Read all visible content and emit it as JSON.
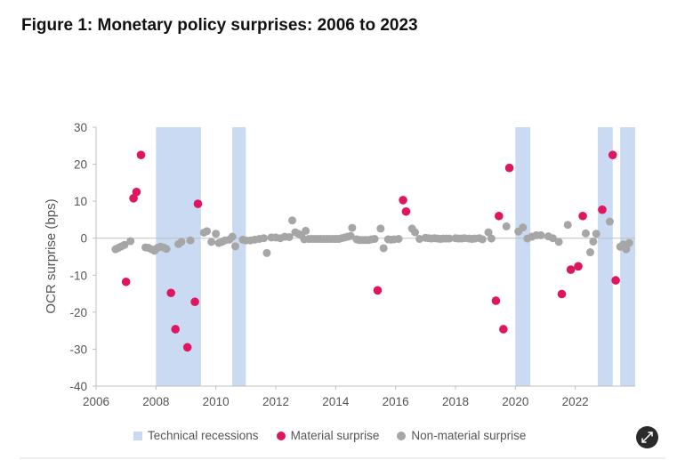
{
  "figure_title": "Figure 1: Monetary policy surprises: 2006 to 2023",
  "expand_button": {
    "icon": "expand-icon",
    "color": "#2a2a2a"
  },
  "colors": {
    "recession": "#c9daf2",
    "material": "#e0155f",
    "nonmaterial": "#a6a6a6",
    "zero_line": "#bfbfbf",
    "axis": "#bfbfbf"
  },
  "chart_data": {
    "type": "scatter",
    "title": "Figure 1: Monetary policy surprises: 2006 to 2023",
    "xlabel": "",
    "ylabel": "OCR surprise (bps)",
    "xlim": [
      2006,
      2024
    ],
    "ylim": [
      -40,
      30
    ],
    "xticks": [
      "2006",
      "2008",
      "2010",
      "2012",
      "2014",
      "2016",
      "2018",
      "2020",
      "2022"
    ],
    "yticks": [
      "30",
      "20",
      "10",
      "0",
      "-10",
      "-20",
      "-30",
      "-40"
    ],
    "grid": false,
    "legend_position": "bottom",
    "legend": [
      "Technical recessions",
      "Material surprise",
      "Non-material surprise"
    ],
    "recessions": [
      [
        2008.0,
        2009.5
      ],
      [
        2010.55,
        2011.0
      ],
      [
        2020.0,
        2020.5
      ],
      [
        2022.75,
        2023.25
      ],
      [
        2023.5,
        2024.0
      ]
    ],
    "series": [
      {
        "name": "Material surprise",
        "points": [
          [
            2007.0,
            -11.8
          ],
          [
            2007.25,
            10.8
          ],
          [
            2007.35,
            12.5
          ],
          [
            2007.5,
            22.5
          ],
          [
            2008.5,
            -14.8
          ],
          [
            2008.65,
            -24.6
          ],
          [
            2009.05,
            -29.5
          ],
          [
            2009.3,
            -17.2
          ],
          [
            2009.4,
            9.3
          ],
          [
            2015.4,
            -14.1
          ],
          [
            2016.25,
            10.3
          ],
          [
            2016.35,
            7.2
          ],
          [
            2019.35,
            -16.9
          ],
          [
            2019.45,
            6.0
          ],
          [
            2019.6,
            -24.6
          ],
          [
            2019.8,
            19.0
          ],
          [
            2021.55,
            -15.1
          ],
          [
            2021.85,
            -8.5
          ],
          [
            2022.1,
            -7.6
          ],
          [
            2022.25,
            6.0
          ],
          [
            2022.9,
            7.7
          ],
          [
            2023.25,
            22.5
          ],
          [
            2023.35,
            -11.4
          ]
        ]
      },
      {
        "name": "Non-material surprise",
        "points": [
          [
            2006.65,
            -3.0
          ],
          [
            2006.75,
            -2.6
          ],
          [
            2006.85,
            -2.2
          ],
          [
            2006.95,
            -1.8
          ],
          [
            2007.15,
            -0.8
          ],
          [
            2007.65,
            -2.5
          ],
          [
            2007.75,
            -2.6
          ],
          [
            2007.85,
            -3.0
          ],
          [
            2007.95,
            -3.4
          ],
          [
            2008.05,
            -2.6
          ],
          [
            2008.15,
            -2.3
          ],
          [
            2008.25,
            -2.5
          ],
          [
            2008.35,
            -2.9
          ],
          [
            2008.75,
            -1.6
          ],
          [
            2008.85,
            -1.0
          ],
          [
            2009.15,
            -0.6
          ],
          [
            2009.6,
            1.5
          ],
          [
            2009.7,
            1.9
          ],
          [
            2009.85,
            -1.0
          ],
          [
            2010.0,
            1.2
          ],
          [
            2010.1,
            -1.3
          ],
          [
            2010.2,
            -1.0
          ],
          [
            2010.3,
            -0.6
          ],
          [
            2010.45,
            -0.4
          ],
          [
            2010.55,
            0.4
          ],
          [
            2010.65,
            -2.2
          ],
          [
            2010.9,
            -0.4
          ],
          [
            2011.0,
            -0.6
          ],
          [
            2011.15,
            -0.6
          ],
          [
            2011.3,
            -0.4
          ],
          [
            2011.45,
            -0.2
          ],
          [
            2011.6,
            0.0
          ],
          [
            2011.7,
            -4.0
          ],
          [
            2011.85,
            0.2
          ],
          [
            2012.0,
            0.2
          ],
          [
            2012.15,
            0.0
          ],
          [
            2012.3,
            0.4
          ],
          [
            2012.45,
            0.3
          ],
          [
            2012.55,
            4.8
          ],
          [
            2012.65,
            1.6
          ],
          [
            2012.75,
            1.2
          ],
          [
            2012.85,
            0.8
          ],
          [
            2012.95,
            -0.3
          ],
          [
            2013.0,
            2.0
          ],
          [
            2013.1,
            -0.2
          ],
          [
            2013.2,
            -0.2
          ],
          [
            2013.3,
            -0.2
          ],
          [
            2013.4,
            -0.2
          ],
          [
            2013.5,
            -0.2
          ],
          [
            2013.6,
            -0.2
          ],
          [
            2013.7,
            -0.2
          ],
          [
            2013.8,
            -0.2
          ],
          [
            2013.9,
            -0.2
          ],
          [
            2014.0,
            -0.2
          ],
          [
            2014.1,
            -0.2
          ],
          [
            2014.2,
            0.0
          ],
          [
            2014.3,
            0.2
          ],
          [
            2014.4,
            0.4
          ],
          [
            2014.5,
            0.6
          ],
          [
            2014.55,
            2.8
          ],
          [
            2014.7,
            -0.3
          ],
          [
            2014.8,
            -0.5
          ],
          [
            2014.9,
            -0.5
          ],
          [
            2015.0,
            -0.5
          ],
          [
            2015.1,
            -0.5
          ],
          [
            2015.2,
            -0.3
          ],
          [
            2015.3,
            -0.2
          ],
          [
            2015.5,
            2.6
          ],
          [
            2015.6,
            -2.7
          ],
          [
            2015.75,
            -0.3
          ],
          [
            2015.85,
            -0.4
          ],
          [
            2015.95,
            -0.3
          ],
          [
            2016.1,
            -0.2
          ],
          [
            2016.55,
            2.6
          ],
          [
            2016.65,
            1.6
          ],
          [
            2016.8,
            -0.2
          ],
          [
            2017.0,
            0.1
          ],
          [
            2017.1,
            0.0
          ],
          [
            2017.2,
            -0.1
          ],
          [
            2017.3,
            0.0
          ],
          [
            2017.4,
            -0.1
          ],
          [
            2017.5,
            -0.2
          ],
          [
            2017.6,
            -0.1
          ],
          [
            2017.7,
            -0.1
          ],
          [
            2017.8,
            -0.1
          ],
          [
            2018.0,
            0.0
          ],
          [
            2018.1,
            -0.1
          ],
          [
            2018.2,
            -0.1
          ],
          [
            2018.3,
            0.0
          ],
          [
            2018.45,
            -0.1
          ],
          [
            2018.55,
            -0.2
          ],
          [
            2018.65,
            -0.1
          ],
          [
            2018.8,
            0.0
          ],
          [
            2018.9,
            -0.3
          ],
          [
            2019.1,
            1.6
          ],
          [
            2019.2,
            -0.1
          ],
          [
            2019.7,
            3.2
          ],
          [
            2020.1,
            1.8
          ],
          [
            2020.25,
            2.9
          ],
          [
            2020.4,
            -0.1
          ],
          [
            2020.55,
            0.4
          ],
          [
            2020.7,
            0.8
          ],
          [
            2020.85,
            0.8
          ],
          [
            2021.1,
            0.5
          ],
          [
            2021.25,
            0.0
          ],
          [
            2021.45,
            -1.0
          ],
          [
            2021.75,
            3.6
          ],
          [
            2022.35,
            1.3
          ],
          [
            2022.5,
            -3.8
          ],
          [
            2022.6,
            -0.9
          ],
          [
            2022.7,
            1.2
          ],
          [
            2023.15,
            4.5
          ],
          [
            2023.5,
            -2.3
          ],
          [
            2023.6,
            -1.7
          ],
          [
            2023.7,
            -3.0
          ],
          [
            2023.8,
            -1.3
          ]
        ]
      }
    ]
  }
}
